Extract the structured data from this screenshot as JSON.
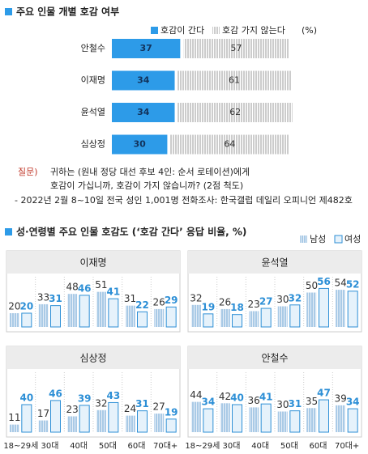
{
  "chart_data": [
    {
      "type": "stacked_barh",
      "title": "주요 인물 개별 호감 여부",
      "unit": "(%)",
      "categories": [
        "안철수",
        "이재명",
        "윤석열",
        "심상정"
      ],
      "series": [
        {
          "name": "호감이 간다",
          "color": "#2d9be8",
          "values": [
            37,
            34,
            34,
            30
          ]
        },
        {
          "name": "호감 가지 않는다",
          "color": "#9a9a9a",
          "values": [
            57,
            61,
            62,
            64
          ]
        }
      ]
    },
    {
      "type": "grouped_bar_panels",
      "title": "성·연령별 주요 인물 호감도 (‘호감 간다’ 응답 비율, %)",
      "categories": [
        "18~29세",
        "30대",
        "40대",
        "50대",
        "60대",
        "70대+"
      ],
      "legend": [
        {
          "name": "남성",
          "color": "#6fa6d6"
        },
        {
          "name": "여성",
          "color": "#2d8fd6"
        }
      ],
      "panels": [
        {
          "title": "이재명",
          "series": [
            {
              "values": [
                20,
                33,
                48,
                51,
                31,
                26
              ]
            },
            {
              "values": [
                20,
                31,
                46,
                41,
                22,
                29
              ]
            }
          ]
        },
        {
          "title": "윤석열",
          "series": [
            {
              "values": [
                32,
                26,
                23,
                30,
                50,
                54
              ]
            },
            {
              "values": [
                19,
                18,
                27,
                32,
                56,
                52
              ]
            }
          ]
        },
        {
          "title": "심상정",
          "series": [
            {
              "values": [
                11,
                17,
                23,
                32,
                24,
                27
              ]
            },
            {
              "values": [
                40,
                46,
                39,
                43,
                31,
                19
              ]
            }
          ]
        },
        {
          "title": "안철수",
          "series": [
            {
              "values": [
                44,
                42,
                36,
                30,
                35,
                39
              ]
            },
            {
              "values": [
                34,
                40,
                41,
                31,
                47,
                34
              ]
            }
          ]
        }
      ]
    }
  ],
  "notes": {
    "question_label": "질문)",
    "question": [
      "귀하는 (원내 정당 대선 후보 4인: 순서 로테이션)에게",
      "호감이 가십니까, 호감이 가지 않습니까? (2점 척도)"
    ],
    "source": "- 2022년 2월 8~10일 전국 성인 1,001명 전화조사: 한국갤럽 데일리 오피니언 제482호"
  }
}
